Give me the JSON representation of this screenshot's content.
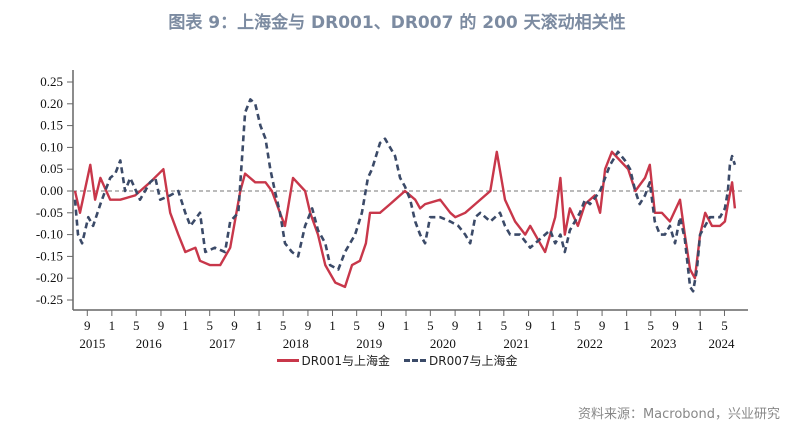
{
  "title": "图表 9：上海金与 DR001、DR007 的 200 天滚动相关性",
  "source": "资料来源：Macrobond，兴业研究",
  "chart_data": {
    "type": "line",
    "title": "图表 9：上海金与 DR001、DR007 的 200 天滚动相关性",
    "xlabel": "",
    "ylabel": "",
    "ylim": [
      -0.25,
      0.25
    ],
    "yticks": [
      "0.25",
      "0.20",
      "0.15",
      "0.10",
      "0.05",
      "0.00",
      "-0.05",
      "-0.10",
      "-0.15",
      "-0.20",
      "-0.25"
    ],
    "xlim": [
      "2015-06-22",
      "2024-08-01"
    ],
    "xtick_months": [
      "9",
      "1",
      "5",
      "9",
      "1",
      "5",
      "9",
      "1",
      "5",
      "9",
      "1",
      "5",
      "9",
      "1",
      "5",
      "9",
      "1",
      "5",
      "9",
      "1",
      "5",
      "9",
      "1",
      "5",
      "9",
      "1",
      "5"
    ],
    "xtick_dates": [
      "2015-09-01",
      "2016-01-01",
      "2016-05-01",
      "2016-09-01",
      "2017-01-01",
      "2017-05-01",
      "2017-09-01",
      "2018-01-01",
      "2018-05-01",
      "2018-09-01",
      "2019-01-01",
      "2019-05-01",
      "2019-09-01",
      "2020-01-01",
      "2020-05-01",
      "2020-09-01",
      "2021-01-01",
      "2021-05-01",
      "2021-09-01",
      "2022-01-01",
      "2022-05-01",
      "2022-09-01",
      "2023-01-01",
      "2023-05-01",
      "2023-09-01",
      "2024-01-01",
      "2024-05-01"
    ],
    "year_labels": [
      "2015",
      "2016",
      "2017",
      "2018",
      "2019",
      "2020",
      "2021",
      "2022",
      "2023",
      "2024"
    ],
    "zero_line": "dashed",
    "grid": false,
    "legend": "bottom",
    "series": [
      {
        "name": "DR001与上海金",
        "color": "#c8374a",
        "style": "solid",
        "x": [
          "2015-07-02",
          "2015-07-27",
          "2015-09-16",
          "2015-10-10",
          "2015-11-05",
          "2015-12-24",
          "2016-02-12",
          "2016-04-26",
          "2016-07-09",
          "2016-09-13",
          "2016-10-17",
          "2016-11-26",
          "2016-12-31",
          "2017-02-19",
          "2017-03-14",
          "2017-05-03",
          "2017-06-22",
          "2017-08-11",
          "2017-09-30",
          "2017-10-24",
          "2017-12-13",
          "2018-02-02",
          "2018-03-06",
          "2018-04-15",
          "2018-05-10",
          "2018-06-19",
          "2018-08-18",
          "2018-09-12",
          "2018-10-21",
          "2018-11-26",
          "2019-01-15",
          "2019-03-04",
          "2019-04-08",
          "2019-05-17",
          "2019-06-16",
          "2019-07-06",
          "2019-08-25",
          "2019-10-14",
          "2019-11-08",
          "2019-12-27",
          "2020-02-16",
          "2020-03-11",
          "2020-04-05",
          "2020-06-19",
          "2020-08-08",
          "2020-09-02",
          "2020-10-21",
          "2020-12-10",
          "2021-02-23",
          "2021-03-27",
          "2021-05-07",
          "2021-06-26",
          "2021-08-15",
          "2021-09-09",
          "2021-10-28",
          "2021-11-22",
          "2022-01-11",
          "2022-02-06",
          "2022-02-28",
          "2022-03-25",
          "2022-05-04",
          "2022-06-08",
          "2022-07-27",
          "2022-08-22",
          "2022-09-16",
          "2022-10-20",
          "2022-11-29",
          "2023-01-09",
          "2023-02-13",
          "2023-04-02",
          "2023-04-26",
          "2023-05-21",
          "2023-06-25",
          "2023-08-04",
          "2023-09-23",
          "2023-10-17",
          "2023-11-12",
          "2023-12-06",
          "2024-01-01",
          "2024-01-26",
          "2024-02-29",
          "2024-04-09",
          "2024-05-03",
          "2024-05-18",
          "2024-06-08",
          "2024-06-22"
        ],
        "values": [
          0.0,
          -0.05,
          0.06,
          -0.02,
          0.03,
          -0.02,
          -0.02,
          -0.01,
          0.02,
          0.05,
          -0.05,
          -0.1,
          -0.14,
          -0.13,
          -0.16,
          -0.17,
          -0.17,
          -0.13,
          0.0,
          0.04,
          0.02,
          0.02,
          0.0,
          -0.05,
          -0.08,
          0.03,
          0.0,
          -0.05,
          -0.1,
          -0.17,
          -0.21,
          -0.22,
          -0.17,
          -0.16,
          -0.12,
          -0.05,
          -0.05,
          -0.03,
          -0.02,
          0.0,
          -0.02,
          -0.04,
          -0.03,
          -0.02,
          -0.05,
          -0.06,
          -0.05,
          -0.03,
          0.0,
          0.09,
          -0.02,
          -0.07,
          -0.1,
          -0.08,
          -0.12,
          -0.14,
          -0.06,
          0.03,
          -0.1,
          -0.04,
          -0.08,
          -0.03,
          -0.01,
          -0.05,
          0.05,
          0.09,
          0.07,
          0.05,
          0.0,
          0.03,
          0.06,
          -0.05,
          -0.05,
          -0.07,
          -0.02,
          -0.1,
          -0.18,
          -0.2,
          -0.1,
          -0.05,
          -0.08,
          -0.08,
          -0.07,
          -0.03,
          0.02,
          -0.04
        ]
      },
      {
        "name": "DR007与上海金",
        "color": "#3b4a68",
        "style": "dashed",
        "x": [
          "2015-07-02",
          "2015-07-17",
          "2015-08-06",
          "2015-09-06",
          "2015-09-30",
          "2015-11-05",
          "2015-11-29",
          "2015-12-24",
          "2016-01-18",
          "2016-02-12",
          "2016-03-07",
          "2016-04-01",
          "2016-05-20",
          "2016-07-09",
          "2016-08-04",
          "2016-08-28",
          "2016-10-17",
          "2016-11-26",
          "2016-12-31",
          "2017-01-25",
          "2017-03-14",
          "2017-04-09",
          "2017-05-27",
          "2017-07-16",
          "2017-08-11",
          "2017-09-20",
          "2017-10-24",
          "2017-11-19",
          "2017-12-13",
          "2018-01-08",
          "2018-02-02",
          "2018-02-26",
          "2018-03-21",
          "2018-04-15",
          "2018-05-10",
          "2018-06-14",
          "2018-07-14",
          "2018-08-18",
          "2018-09-22",
          "2018-10-21",
          "2018-11-26",
          "2018-12-20",
          "2019-01-30",
          "2019-03-04",
          "2019-04-23",
          "2019-05-27",
          "2019-06-26",
          "2019-07-16",
          "2019-08-25",
          "2019-09-19",
          "2019-11-08",
          "2019-12-03",
          "2019-12-27",
          "2020-01-22",
          "2020-02-16",
          "2020-03-11",
          "2020-04-05",
          "2020-04-30",
          "2020-06-19",
          "2020-08-08",
          "2020-09-17",
          "2020-10-21",
          "2020-11-15",
          "2020-12-10",
          "2021-01-04",
          "2021-02-23",
          "2021-04-12",
          "2021-05-07",
          "2021-06-01",
          "2021-07-20",
          "2021-09-09",
          "2021-10-28",
          "2021-12-17",
          "2022-01-11",
          "2022-02-06",
          "2022-02-28",
          "2022-03-25",
          "2022-05-14",
          "2022-06-08",
          "2022-07-03",
          "2022-08-22",
          "2022-09-16",
          "2022-10-11",
          "2022-11-19",
          "2022-12-24",
          "2023-01-18",
          "2023-02-13",
          "2023-03-07",
          "2023-04-02",
          "2023-04-26",
          "2023-05-21",
          "2023-06-15",
          "2023-07-10",
          "2023-08-04",
          "2023-08-29",
          "2023-09-23",
          "2023-10-17",
          "2023-11-12",
          "2023-11-27",
          "2023-12-16",
          "2024-01-01",
          "2024-02-19",
          "2024-04-09",
          "2024-05-03",
          "2024-05-18",
          "2024-05-28",
          "2024-06-08",
          "2024-06-22"
        ],
        "values": [
          -0.02,
          -0.1,
          -0.12,
          -0.06,
          -0.08,
          -0.03,
          0.0,
          0.03,
          0.04,
          0.07,
          0.0,
          0.03,
          -0.02,
          0.02,
          0.03,
          -0.02,
          -0.01,
          0.0,
          -0.05,
          -0.08,
          -0.05,
          -0.14,
          -0.13,
          -0.14,
          -0.07,
          -0.05,
          0.18,
          0.21,
          0.2,
          0.15,
          0.12,
          0.05,
          0.0,
          -0.05,
          -0.12,
          -0.14,
          -0.15,
          -0.08,
          -0.04,
          -0.09,
          -0.12,
          -0.17,
          -0.18,
          -0.14,
          -0.1,
          -0.05,
          0.03,
          0.05,
          0.11,
          0.12,
          0.08,
          0.03,
          0.01,
          -0.02,
          -0.07,
          -0.1,
          -0.12,
          -0.06,
          -0.06,
          -0.07,
          -0.08,
          -0.1,
          -0.12,
          -0.06,
          -0.05,
          -0.07,
          -0.05,
          -0.08,
          -0.1,
          -0.1,
          -0.13,
          -0.11,
          -0.09,
          -0.12,
          -0.1,
          -0.14,
          -0.09,
          -0.05,
          -0.02,
          -0.03,
          0.0,
          0.03,
          0.06,
          0.09,
          0.07,
          0.05,
          0.0,
          -0.03,
          -0.01,
          0.02,
          -0.07,
          -0.1,
          -0.1,
          -0.08,
          -0.12,
          -0.06,
          -0.11,
          -0.22,
          -0.23,
          -0.18,
          -0.1,
          -0.06,
          -0.06,
          -0.04,
          0.0,
          0.06,
          0.08,
          0.06
        ]
      }
    ]
  }
}
